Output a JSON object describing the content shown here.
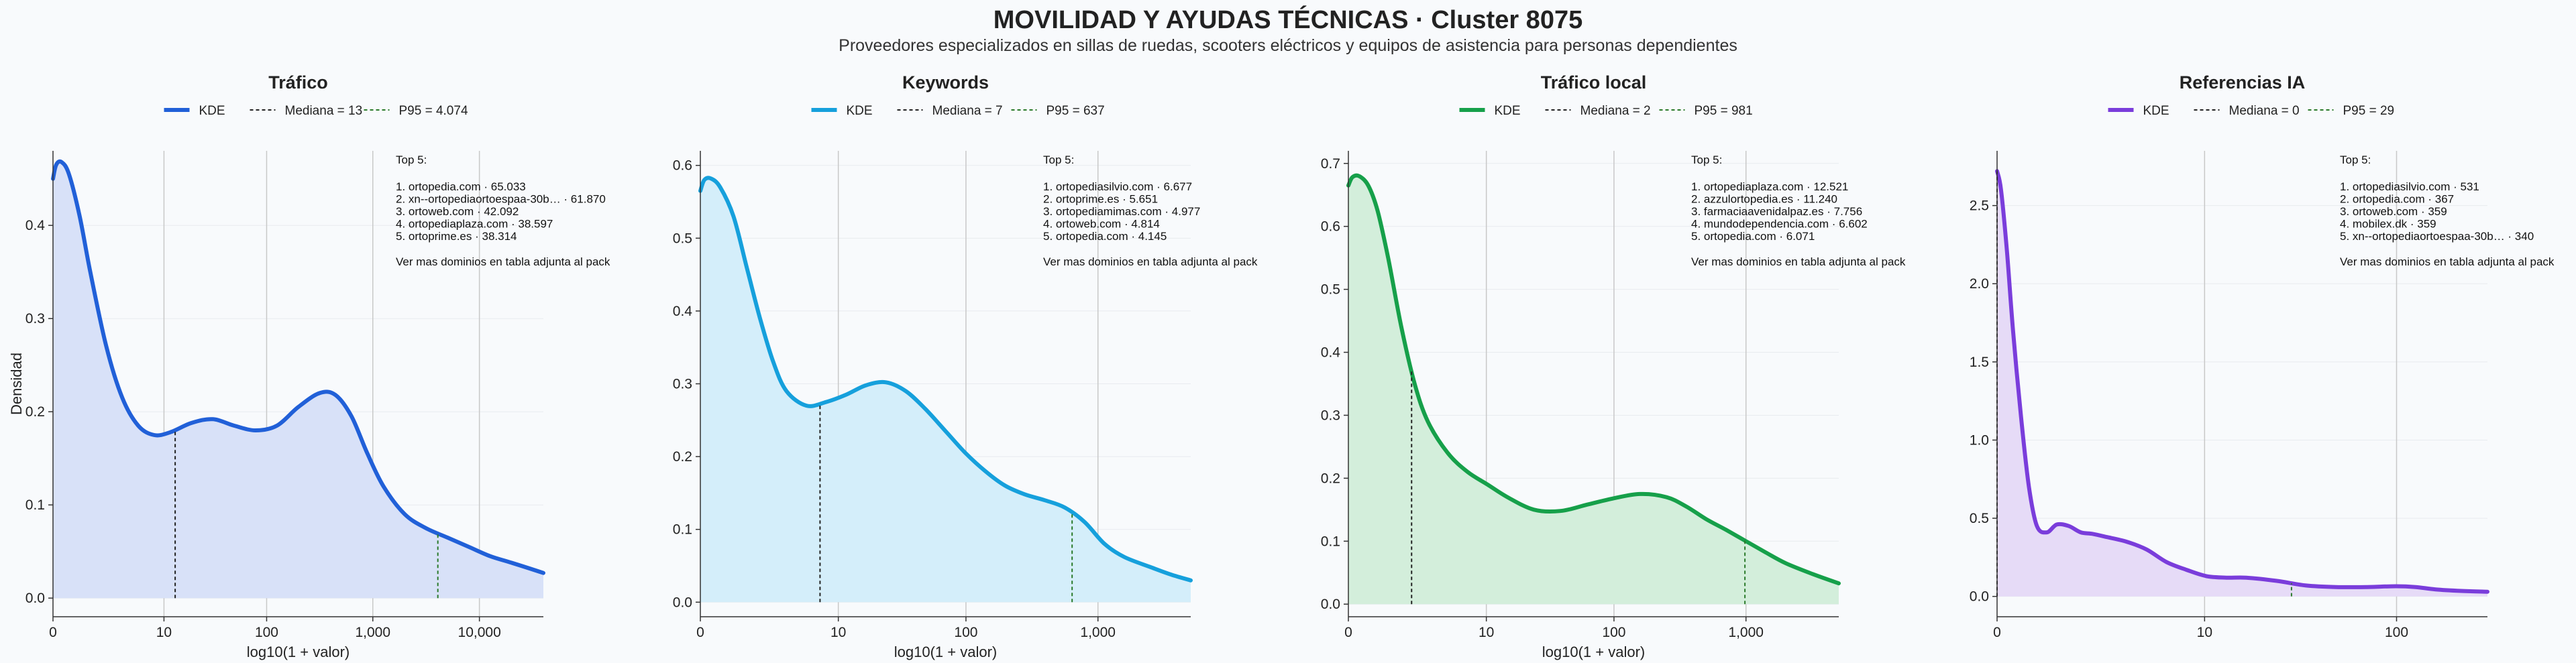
{
  "title": "MOVILIDAD Y AYUDAS TÉCNICAS · Cluster 8075",
  "subtitle": "Proveedores especializados en sillas de ruedas, scooters eléctricos y equipos de asistencia para personas dependientes",
  "chart_data": [
    {
      "type": "area",
      "title": "Tráfico",
      "xlabel": "log10(1 + valor)",
      "ylabel": "Densidad",
      "color": "#2160d8",
      "fill": "#d8e1f8",
      "legend": [
        "KDE",
        "Mediana = 13",
        "P95 = 4.074"
      ],
      "xlim": [
        0,
        4.6
      ],
      "ylim": [
        -0.02,
        0.48
      ],
      "xticks": [
        {
          "v": 0,
          "label": "0"
        },
        {
          "v": 1.041,
          "label": "10"
        },
        {
          "v": 2.004,
          "label": "100"
        },
        {
          "v": 3.0,
          "label": "1,000"
        },
        {
          "v": 4.0,
          "label": "10,000"
        }
      ],
      "yticks": [
        0.0,
        0.1,
        0.2,
        0.3,
        0.4
      ],
      "ytick_labels": [
        "0.0",
        "0.1",
        "0.2",
        "0.3",
        "0.4"
      ],
      "median_x": 1.146,
      "p95_x": 3.61,
      "x": [
        0,
        0.03,
        0.08,
        0.15,
        0.25,
        0.35,
        0.5,
        0.65,
        0.8,
        0.95,
        1.1,
        1.3,
        1.5,
        1.7,
        1.9,
        2.1,
        2.3,
        2.5,
        2.65,
        2.8,
        2.95,
        3.1,
        3.3,
        3.5,
        3.7,
        3.9,
        4.1,
        4.3,
        4.6
      ],
      "y": [
        0.45,
        0.465,
        0.468,
        0.455,
        0.41,
        0.35,
        0.27,
        0.215,
        0.185,
        0.175,
        0.178,
        0.188,
        0.192,
        0.185,
        0.18,
        0.185,
        0.205,
        0.22,
        0.218,
        0.195,
        0.155,
        0.12,
        0.09,
        0.075,
        0.065,
        0.055,
        0.045,
        0.038,
        0.027
      ],
      "top5_header": "Top 5:",
      "top5": [
        "1. ortopedia.com · 65.033",
        "2. xn--ortopediaortoespaa-30b… · 61.870",
        "3. ortoweb.com · 42.092",
        "4. ortopediaplaza.com · 38.597",
        "5. ortoprime.es · 38.314"
      ],
      "note": "Ver mas dominios en tabla adjunta al pack"
    },
    {
      "type": "area",
      "title": "Keywords",
      "xlabel": "log10(1 + valor)",
      "ylabel": "",
      "color": "#16a0dc",
      "fill": "#d4eefa",
      "legend": [
        "KDE",
        "Mediana = 7",
        "P95 = 637"
      ],
      "xlim": [
        0,
        3.7
      ],
      "ylim": [
        -0.02,
        0.62
      ],
      "xticks": [
        {
          "v": 0,
          "label": "0"
        },
        {
          "v": 1.041,
          "label": "10"
        },
        {
          "v": 2.004,
          "label": "100"
        },
        {
          "v": 3.0,
          "label": "1,000"
        }
      ],
      "yticks": [
        0.0,
        0.1,
        0.2,
        0.3,
        0.4,
        0.5,
        0.6
      ],
      "ytick_labels": [
        "0.0",
        "0.1",
        "0.2",
        "0.3",
        "0.4",
        "0.5",
        "0.6"
      ],
      "median_x": 0.903,
      "p95_x": 2.805,
      "x": [
        0,
        0.03,
        0.08,
        0.15,
        0.25,
        0.35,
        0.45,
        0.55,
        0.65,
        0.8,
        0.95,
        1.1,
        1.25,
        1.4,
        1.55,
        1.7,
        1.85,
        2.0,
        2.15,
        2.3,
        2.45,
        2.6,
        2.75,
        2.9,
        3.05,
        3.2,
        3.4,
        3.55,
        3.7
      ],
      "y": [
        0.565,
        0.58,
        0.582,
        0.57,
        0.53,
        0.46,
        0.39,
        0.33,
        0.29,
        0.27,
        0.275,
        0.285,
        0.298,
        0.302,
        0.29,
        0.265,
        0.235,
        0.205,
        0.18,
        0.16,
        0.148,
        0.14,
        0.13,
        0.11,
        0.08,
        0.062,
        0.048,
        0.038,
        0.03
      ],
      "top5_header": "Top 5:",
      "top5": [
        "1. ortopediasilvio.com · 6.677",
        "2. ortoprime.es · 5.651",
        "3. ortopediamimas.com · 4.977",
        "4. ortoweb.com · 4.814",
        "5. ortopedia.com · 4.145"
      ],
      "note": "Ver mas dominios en tabla adjunta al pack"
    },
    {
      "type": "area",
      "title": "Tráfico local",
      "xlabel": "log10(1 + valor)",
      "ylabel": "",
      "color": "#16a04a",
      "fill": "#d3eedb",
      "legend": [
        "KDE",
        "Mediana = 2",
        "P95 = 981"
      ],
      "xlim": [
        0,
        3.7
      ],
      "ylim": [
        -0.02,
        0.72
      ],
      "xticks": [
        {
          "v": 0,
          "label": "0"
        },
        {
          "v": 1.041,
          "label": "10"
        },
        {
          "v": 2.004,
          "label": "100"
        },
        {
          "v": 3.0,
          "label": "1,000"
        }
      ],
      "yticks": [
        0.0,
        0.1,
        0.2,
        0.3,
        0.4,
        0.5,
        0.6,
        0.7
      ],
      "ytick_labels": [
        "0.0",
        "0.1",
        "0.2",
        "0.3",
        "0.4",
        "0.5",
        "0.6",
        "0.7"
      ],
      "median_x": 0.477,
      "p95_x": 2.992,
      "x": [
        0,
        0.03,
        0.08,
        0.15,
        0.22,
        0.3,
        0.4,
        0.5,
        0.6,
        0.75,
        0.9,
        1.05,
        1.2,
        1.4,
        1.6,
        1.8,
        2.0,
        2.2,
        2.4,
        2.55,
        2.7,
        2.85,
        3.0,
        3.15,
        3.3,
        3.5,
        3.7
      ],
      "y": [
        0.665,
        0.678,
        0.68,
        0.665,
        0.625,
        0.55,
        0.44,
        0.35,
        0.29,
        0.24,
        0.21,
        0.19,
        0.17,
        0.15,
        0.148,
        0.158,
        0.168,
        0.175,
        0.17,
        0.155,
        0.135,
        0.118,
        0.1,
        0.082,
        0.065,
        0.048,
        0.033
      ],
      "top5_header": "Top 5:",
      "top5": [
        "1. ortopediaplaza.com · 12.521",
        "2. azzulortopedia.es · 11.240",
        "3. farmaciaavenidalpaz.es · 7.756",
        "4. mundodependencia.com · 6.602",
        "5. ortopedia.com · 6.071"
      ],
      "note": "Ver mas dominios en tabla adjunta al pack"
    },
    {
      "type": "area",
      "title": "Referencias IA",
      "xlabel": "",
      "ylabel": "",
      "color": "#7a3ddb",
      "fill": "#e6dbf7",
      "legend": [
        "KDE",
        "Mediana = 0",
        "P95 = 29"
      ],
      "xlim": [
        0,
        2.46
      ],
      "ylim": [
        -0.13,
        2.85
      ],
      "xticks": [
        {
          "v": 0,
          "label": "0"
        },
        {
          "v": 1.041,
          "label": "10"
        },
        {
          "v": 2.004,
          "label": "100"
        }
      ],
      "yticks": [
        0.0,
        0.5,
        1.0,
        1.5,
        2.0,
        2.5
      ],
      "ytick_labels": [
        "0.0",
        "0.5",
        "1.0",
        "1.5",
        "2.0",
        "2.5"
      ],
      "median_x": 0,
      "p95_x": 1.477,
      "x": [
        0,
        0.02,
        0.05,
        0.08,
        0.12,
        0.16,
        0.2,
        0.25,
        0.3,
        0.36,
        0.42,
        0.48,
        0.55,
        0.65,
        0.75,
        0.85,
        0.95,
        1.05,
        1.15,
        1.25,
        1.4,
        1.55,
        1.7,
        1.85,
        2.0,
        2.1,
        2.2,
        2.33,
        2.46
      ],
      "y": [
        2.72,
        2.6,
        2.2,
        1.7,
        1.15,
        0.7,
        0.45,
        0.41,
        0.46,
        0.45,
        0.41,
        0.4,
        0.38,
        0.35,
        0.3,
        0.22,
        0.17,
        0.13,
        0.12,
        0.12,
        0.1,
        0.07,
        0.06,
        0.06,
        0.065,
        0.06,
        0.045,
        0.035,
        0.03
      ],
      "top5_header": "Top 5:",
      "top5": [
        "1. ortopediasilvio.com · 531",
        "2. ortopedia.com · 367",
        "3. ortoweb.com · 359",
        "4. mobilex.dk · 359",
        "5. xn--ortopediaortoespaa-30b… · 340"
      ],
      "note": "Ver mas dominios en tabla adjunta al pack"
    }
  ]
}
